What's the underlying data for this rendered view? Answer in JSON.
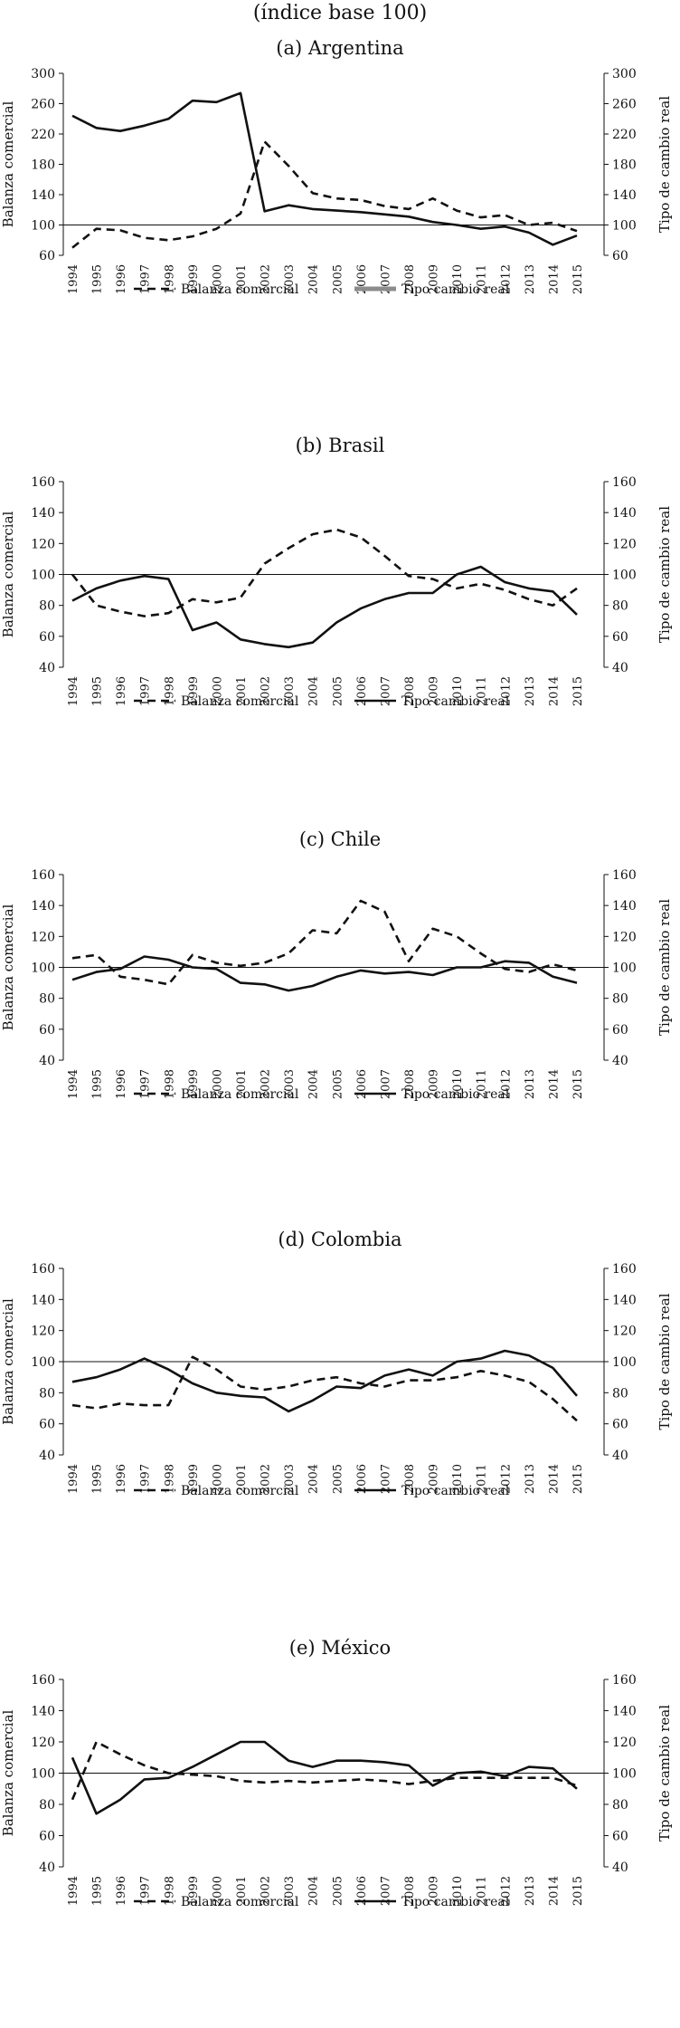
{
  "header": {
    "title": "(índice base 100)"
  },
  "colors": {
    "axis": "#111111",
    "series_balanza": "#111111",
    "series_tipo": "#111111",
    "legend_tipo_argentina": "#8c8c8c"
  },
  "chart_data": [
    {
      "id": "argentina",
      "type": "line",
      "title": "(a) Argentina",
      "ylabel": "Balanza comercial",
      "y2label": "Tipo de cambio real",
      "ylim": [
        60,
        300
      ],
      "yticks": [
        "60",
        "100",
        "140",
        "180",
        "220",
        "260",
        "300"
      ],
      "categories": [
        "1994",
        "1995",
        "1996",
        "1997",
        "1998",
        "1999",
        "2000",
        "2001",
        "2002",
        "2003",
        "2004",
        "2005",
        "2006",
        "2007",
        "2008",
        "2009",
        "2010",
        "2011",
        "2012",
        "2013",
        "2014",
        "2015"
      ],
      "reference_line": 100,
      "series": [
        {
          "name": "Balanza comercial",
          "style": "dashed",
          "values": [
            70,
            95,
            93,
            83,
            80,
            85,
            95,
            115,
            210,
            178,
            142,
            135,
            133,
            125,
            121,
            135,
            119,
            110,
            113,
            100,
            103,
            92
          ]
        },
        {
          "name": "Tipo cambio real",
          "style": "solid",
          "values": [
            244,
            228,
            224,
            231,
            240,
            264,
            262,
            274,
            118,
            126,
            121,
            119,
            117,
            114,
            111,
            104,
            100,
            95,
            98,
            90,
            74,
            86
          ]
        }
      ]
    },
    {
      "id": "brasil",
      "type": "line",
      "title": "(b) Brasil",
      "ylabel": "Balanza comercial",
      "y2label": "Tipo de cambio real",
      "ylim": [
        40,
        160
      ],
      "yticks": [
        "40",
        "60",
        "80",
        "100",
        "120",
        "140",
        "160"
      ],
      "categories": [
        "1994",
        "1995",
        "1996",
        "1997",
        "1998",
        "1999",
        "2000",
        "2001",
        "2002",
        "2003",
        "2004",
        "2005",
        "2006",
        "2007",
        "2008",
        "2009",
        "2010",
        "2011",
        "2012",
        "2013",
        "2014",
        "2015"
      ],
      "reference_line": 100,
      "series": [
        {
          "name": "Balanza comercial",
          "style": "dashed",
          "values": [
            100,
            80,
            76,
            73,
            75,
            84,
            82,
            85,
            107,
            117,
            126,
            129,
            124,
            112,
            99,
            97,
            91,
            94,
            90,
            84,
            80,
            91
          ]
        },
        {
          "name": "Tipo cambio real",
          "style": "solid",
          "values": [
            83,
            91,
            96,
            99,
            97,
            64,
            69,
            58,
            55,
            53,
            56,
            69,
            78,
            84,
            88,
            88,
            100,
            105,
            95,
            91,
            89,
            74
          ]
        }
      ]
    },
    {
      "id": "chile",
      "type": "line",
      "title": "(c) Chile",
      "ylabel": "Balanza comercial",
      "y2label": "Tipo de cambio real",
      "ylim": [
        40,
        160
      ],
      "yticks": [
        "40",
        "60",
        "80",
        "100",
        "120",
        "140",
        "160"
      ],
      "categories": [
        "1994",
        "1995",
        "1996",
        "1997",
        "1998",
        "1999",
        "2000",
        "2001",
        "2002",
        "2003",
        "2004",
        "2005",
        "2006",
        "2007",
        "2008",
        "2009",
        "2010",
        "2011",
        "2012",
        "2013",
        "2014",
        "2015"
      ],
      "reference_line": 100,
      "series": [
        {
          "name": "Balanza comercial",
          "style": "dashed",
          "values": [
            106,
            108,
            94,
            92,
            89,
            108,
            103,
            101,
            103,
            109,
            124,
            122,
            143,
            136,
            104,
            125,
            120,
            109,
            99,
            97,
            102,
            98
          ]
        },
        {
          "name": "Tipo cambio real",
          "style": "solid",
          "values": [
            92,
            97,
            99,
            107,
            105,
            100,
            99,
            90,
            89,
            85,
            88,
            94,
            98,
            96,
            97,
            95,
            100,
            100,
            104,
            103,
            94,
            90
          ]
        }
      ]
    },
    {
      "id": "colombia",
      "type": "line",
      "title": "(d) Colombia",
      "ylabel": "Balanza comercial",
      "y2label": "Tipo de cambio real",
      "ylim": [
        40,
        160
      ],
      "yticks": [
        "40",
        "60",
        "80",
        "100",
        "120",
        "140",
        "160"
      ],
      "categories": [
        "1994",
        "1995",
        "1996",
        "1997",
        "1998",
        "1999",
        "2000",
        "2001",
        "2002",
        "2003",
        "2004",
        "2005",
        "2006",
        "2007",
        "2008",
        "2009",
        "2010",
        "2011",
        "2012",
        "2013",
        "2014",
        "2015"
      ],
      "reference_line": 100,
      "series": [
        {
          "name": "Balanza comercial",
          "style": "dashed",
          "values": [
            72,
            70,
            73,
            72,
            72,
            103,
            95,
            84,
            82,
            84,
            88,
            90,
            86,
            84,
            88,
            88,
            90,
            94,
            91,
            87,
            76,
            62
          ]
        },
        {
          "name": "Tipo cambio real",
          "style": "solid",
          "values": [
            87,
            90,
            95,
            102,
            95,
            86,
            80,
            78,
            77,
            68,
            75,
            84,
            83,
            91,
            95,
            91,
            100,
            102,
            107,
            104,
            96,
            78
          ]
        }
      ]
    },
    {
      "id": "mexico",
      "type": "line",
      "title": "(e) México",
      "ylabel": "Balanza comercial",
      "y2label": "Tipo de cambio real",
      "ylim": [
        40,
        160
      ],
      "yticks": [
        "40",
        "60",
        "80",
        "100",
        "120",
        "140",
        "160"
      ],
      "categories": [
        "1994",
        "1995",
        "1996",
        "1997",
        "1998",
        "1999",
        "2000",
        "2001",
        "2002",
        "2003",
        "2004",
        "2005",
        "2006",
        "2007",
        "2008",
        "2009",
        "2010",
        "2011",
        "2012",
        "2013",
        "2014",
        "2015"
      ],
      "reference_line": 100,
      "series": [
        {
          "name": "Balanza comercial",
          "style": "dashed",
          "values": [
            83,
            120,
            112,
            105,
            100,
            99,
            98,
            95,
            94,
            95,
            94,
            95,
            96,
            95,
            93,
            95,
            97,
            97,
            97,
            97,
            97,
            92
          ]
        },
        {
          "name": "Tipo cambio real",
          "style": "solid",
          "values": [
            110,
            74,
            83,
            96,
            97,
            104,
            112,
            120,
            120,
            108,
            104,
            108,
            108,
            107,
            105,
            92,
            100,
            101,
            98,
            104,
            103,
            90
          ]
        }
      ]
    }
  ]
}
